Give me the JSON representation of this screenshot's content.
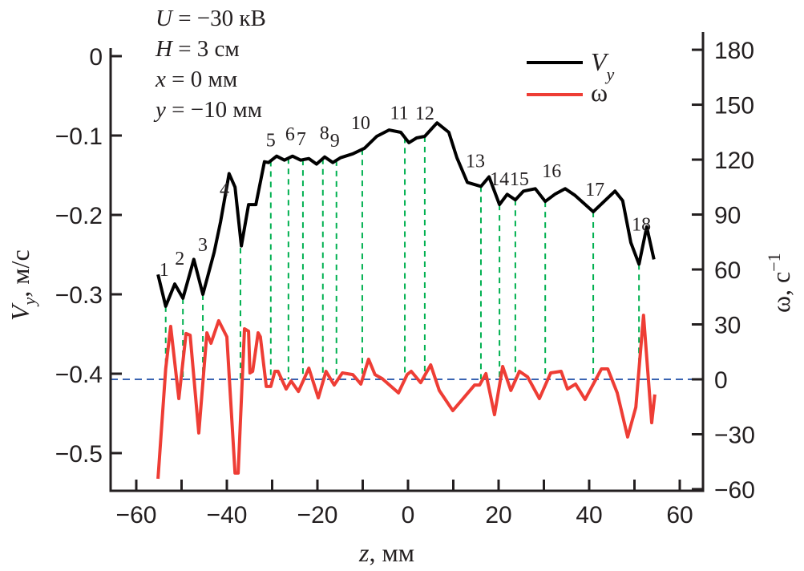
{
  "chart_data": {
    "type": "line",
    "annotations": [
      "U = −30 кВ",
      "H = 3 см",
      "x = 0 мм",
      "y = −10 мм"
    ],
    "annotation_parts": [
      {
        "var": "U",
        "rest": " = −30 кВ"
      },
      {
        "var": "H",
        "rest": " = 3 см"
      },
      {
        "var": "x",
        "rest": " = 0 мм"
      },
      {
        "var": "y",
        "rest": " = −10 мм"
      }
    ],
    "x_axis": {
      "label_var": "z",
      "label_unit": ", мм",
      "range": [
        -62,
        68
      ],
      "ticks": [
        -60,
        -40,
        -20,
        0,
        20,
        40,
        60
      ],
      "tick_labels": [
        "−60",
        "−40",
        "−20",
        "0",
        "20",
        "40",
        "60"
      ],
      "minor_step": 10
    },
    "y_axis_left": {
      "label_var": "V",
      "label_sub": "y",
      "label_unit": ", м/с",
      "range": [
        -0.548,
        0.0
      ],
      "ticks": [
        0,
        -0.1,
        -0.2,
        -0.3,
        -0.4,
        -0.5
      ],
      "tick_labels": [
        "0",
        "−0.1",
        "−0.2",
        "−0.3",
        "−0.4",
        "−0.5"
      ]
    },
    "y_axis_right": {
      "label_var": "ω",
      "label_unit": ", с",
      "label_sup": "−1",
      "range": [
        -60,
        180
      ],
      "ticks": [
        180,
        150,
        120,
        90,
        60,
        30,
        0,
        -30,
        -60
      ],
      "tick_labels": [
        "180",
        "150",
        "120",
        "90",
        "60",
        "30",
        "0",
        "−30",
        "−60"
      ]
    },
    "legend": {
      "placement": "top-right",
      "entries": [
        {
          "name": "V",
          "sub": "y",
          "color": "#000000"
        },
        {
          "name": "ω",
          "color": "#ee3d35"
        }
      ]
    },
    "series": [
      {
        "name": "Vy",
        "axis": "left",
        "color": "#000000",
        "z": [
          -55.2,
          -53.5,
          -51.5,
          -49.7,
          -47.3,
          -45.3,
          -42.8,
          -41.4,
          -39.5,
          -38.2,
          -36.8,
          -35.2,
          -33.6,
          -31.7,
          -30.8,
          -29.0,
          -27.3,
          -25.5,
          -23.7,
          -21.9,
          -20.2,
          -18.4,
          -16.6,
          -14.9,
          -12.2,
          -9.6,
          -6.9,
          -4.2,
          -1.6,
          0.2,
          1.9,
          3.7,
          6.4,
          9.0,
          10.8,
          13.1,
          16.1,
          17.9,
          20.2,
          21.9,
          23.7,
          25.5,
          28.1,
          30.3,
          32.4,
          34.7,
          36.8,
          40.9,
          45.7,
          47.4,
          49.2,
          51.0,
          52.7,
          54.3
        ],
        "values": [
          -0.275,
          -0.315,
          -0.287,
          -0.305,
          -0.256,
          -0.3,
          -0.247,
          -0.209,
          -0.148,
          -0.165,
          -0.239,
          -0.187,
          -0.187,
          -0.133,
          -0.134,
          -0.126,
          -0.131,
          -0.126,
          -0.131,
          -0.129,
          -0.136,
          -0.127,
          -0.134,
          -0.128,
          -0.123,
          -0.116,
          -0.101,
          -0.093,
          -0.096,
          -0.109,
          -0.103,
          -0.101,
          -0.084,
          -0.096,
          -0.128,
          -0.159,
          -0.164,
          -0.152,
          -0.187,
          -0.174,
          -0.181,
          -0.17,
          -0.167,
          -0.183,
          -0.174,
          -0.167,
          -0.175,
          -0.196,
          -0.17,
          -0.182,
          -0.235,
          -0.262,
          -0.215,
          -0.256
        ]
      },
      {
        "name": "ω",
        "axis": "right",
        "color": "#ee3d35",
        "z": [
          -55.2,
          -53.5,
          -52.4,
          -50.6,
          -49.0,
          -48.1,
          -46.2,
          -44.4,
          -43.5,
          -41.8,
          -40.0,
          -38.2,
          -37.5,
          -36.1,
          -35.2,
          -34.9,
          -34.3,
          -33.1,
          -32.6,
          -31.3,
          -30.3,
          -29.4,
          -28.7,
          -26.9,
          -25.8,
          -24.2,
          -21.9,
          -19.8,
          -18.1,
          -16.3,
          -14.5,
          -12.2,
          -10.4,
          -8.7,
          -7.3,
          -5.7,
          -2.1,
          -0.2,
          0.7,
          2.8,
          5.0,
          6.9,
          9.9,
          12.0,
          14.7,
          15.8,
          17.2,
          19.1,
          20.9,
          22.7,
          24.6,
          26.4,
          29.0,
          31.5,
          33.8,
          35.2,
          37.0,
          39.1,
          42.7,
          44.1,
          46.2,
          48.5,
          50.3,
          52.0,
          53.8,
          54.5
        ],
        "values": [
          -54.3,
          5.7,
          28.9,
          -10.5,
          25.0,
          24.1,
          -29.3,
          25.4,
          19.7,
          32.0,
          23.2,
          -51.2,
          -51.2,
          27.6,
          26.3,
          3.5,
          4.4,
          25.4,
          23.2,
          -3.9,
          -3.9,
          4.4,
          4.4,
          -5.3,
          -0.9,
          -6.6,
          6.1,
          -10.1,
          4.4,
          -3.1,
          3.5,
          2.6,
          -2.6,
          11.0,
          2.6,
          0.4,
          -7.4,
          2.6,
          4.4,
          -1.8,
          7.9,
          -6.1,
          -17.1,
          -11.0,
          -3.1,
          -3.1,
          3.1,
          -19.3,
          7.0,
          -6.1,
          4.4,
          1.3,
          -10.5,
          3.5,
          4.4,
          -5.3,
          -2.6,
          -11.0,
          5.7,
          5.7,
          -7.4,
          -31.5,
          -15.3,
          35.0,
          -23.7,
          -8.3
        ]
      }
    ],
    "zero_line": {
      "axis": "right",
      "value": 0,
      "color": "#1f4fa8",
      "style": "dashed"
    },
    "markers": {
      "color": "#00b050",
      "style": "dashed",
      "labels": [
        "1",
        "2",
        "3",
        "4",
        "5",
        "6",
        "7",
        "8",
        "9",
        "10",
        "11",
        "12",
        "13",
        "14",
        "15",
        "16",
        "17",
        "18"
      ],
      "z": [
        -53.5,
        -49.7,
        -45.3,
        -37.0,
        -30.3,
        -26.4,
        -23.2,
        -18.8,
        -15.8,
        -10.1,
        -0.7,
        3.7,
        16.1,
        20.2,
        23.7,
        30.3,
        40.9,
        51.0
      ]
    }
  }
}
